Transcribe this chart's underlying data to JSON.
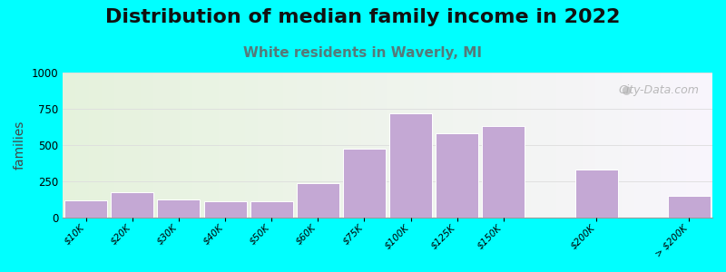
{
  "title": "Distribution of median family income in 2022",
  "subtitle": "White residents in Waverly, MI",
  "ylabel": "families",
  "categories": [
    "$10K",
    "$20K",
    "$30K",
    "$40K",
    "$50K",
    "$60K",
    "$75K",
    "$100K",
    "$125K",
    "$150K",
    "$200K",
    "> $200K"
  ],
  "values": [
    120,
    175,
    130,
    115,
    115,
    240,
    475,
    720,
    580,
    630,
    335,
    155
  ],
  "bar_positions": [
    0,
    1,
    2,
    3,
    4,
    5,
    6,
    7,
    8,
    9,
    11,
    13
  ],
  "bar_color": "#C4A8D4",
  "bar_edge_color": "#FFFFFF",
  "bar_width": 0.92,
  "ylim": [
    0,
    1000
  ],
  "yticks": [
    0,
    250,
    500,
    750,
    1000
  ],
  "xlim": [
    -0.5,
    13.5
  ],
  "background_color": "#00FFFF",
  "plot_bg_left": "#E5F2DC",
  "plot_bg_right": "#F8F5FC",
  "title_fontsize": 16,
  "subtitle_fontsize": 11,
  "subtitle_color": "#557A7A",
  "ylabel_fontsize": 10,
  "watermark": "City-Data.com",
  "watermark_color": "#AAAAAA",
  "grid_color": "#DDDDDD"
}
